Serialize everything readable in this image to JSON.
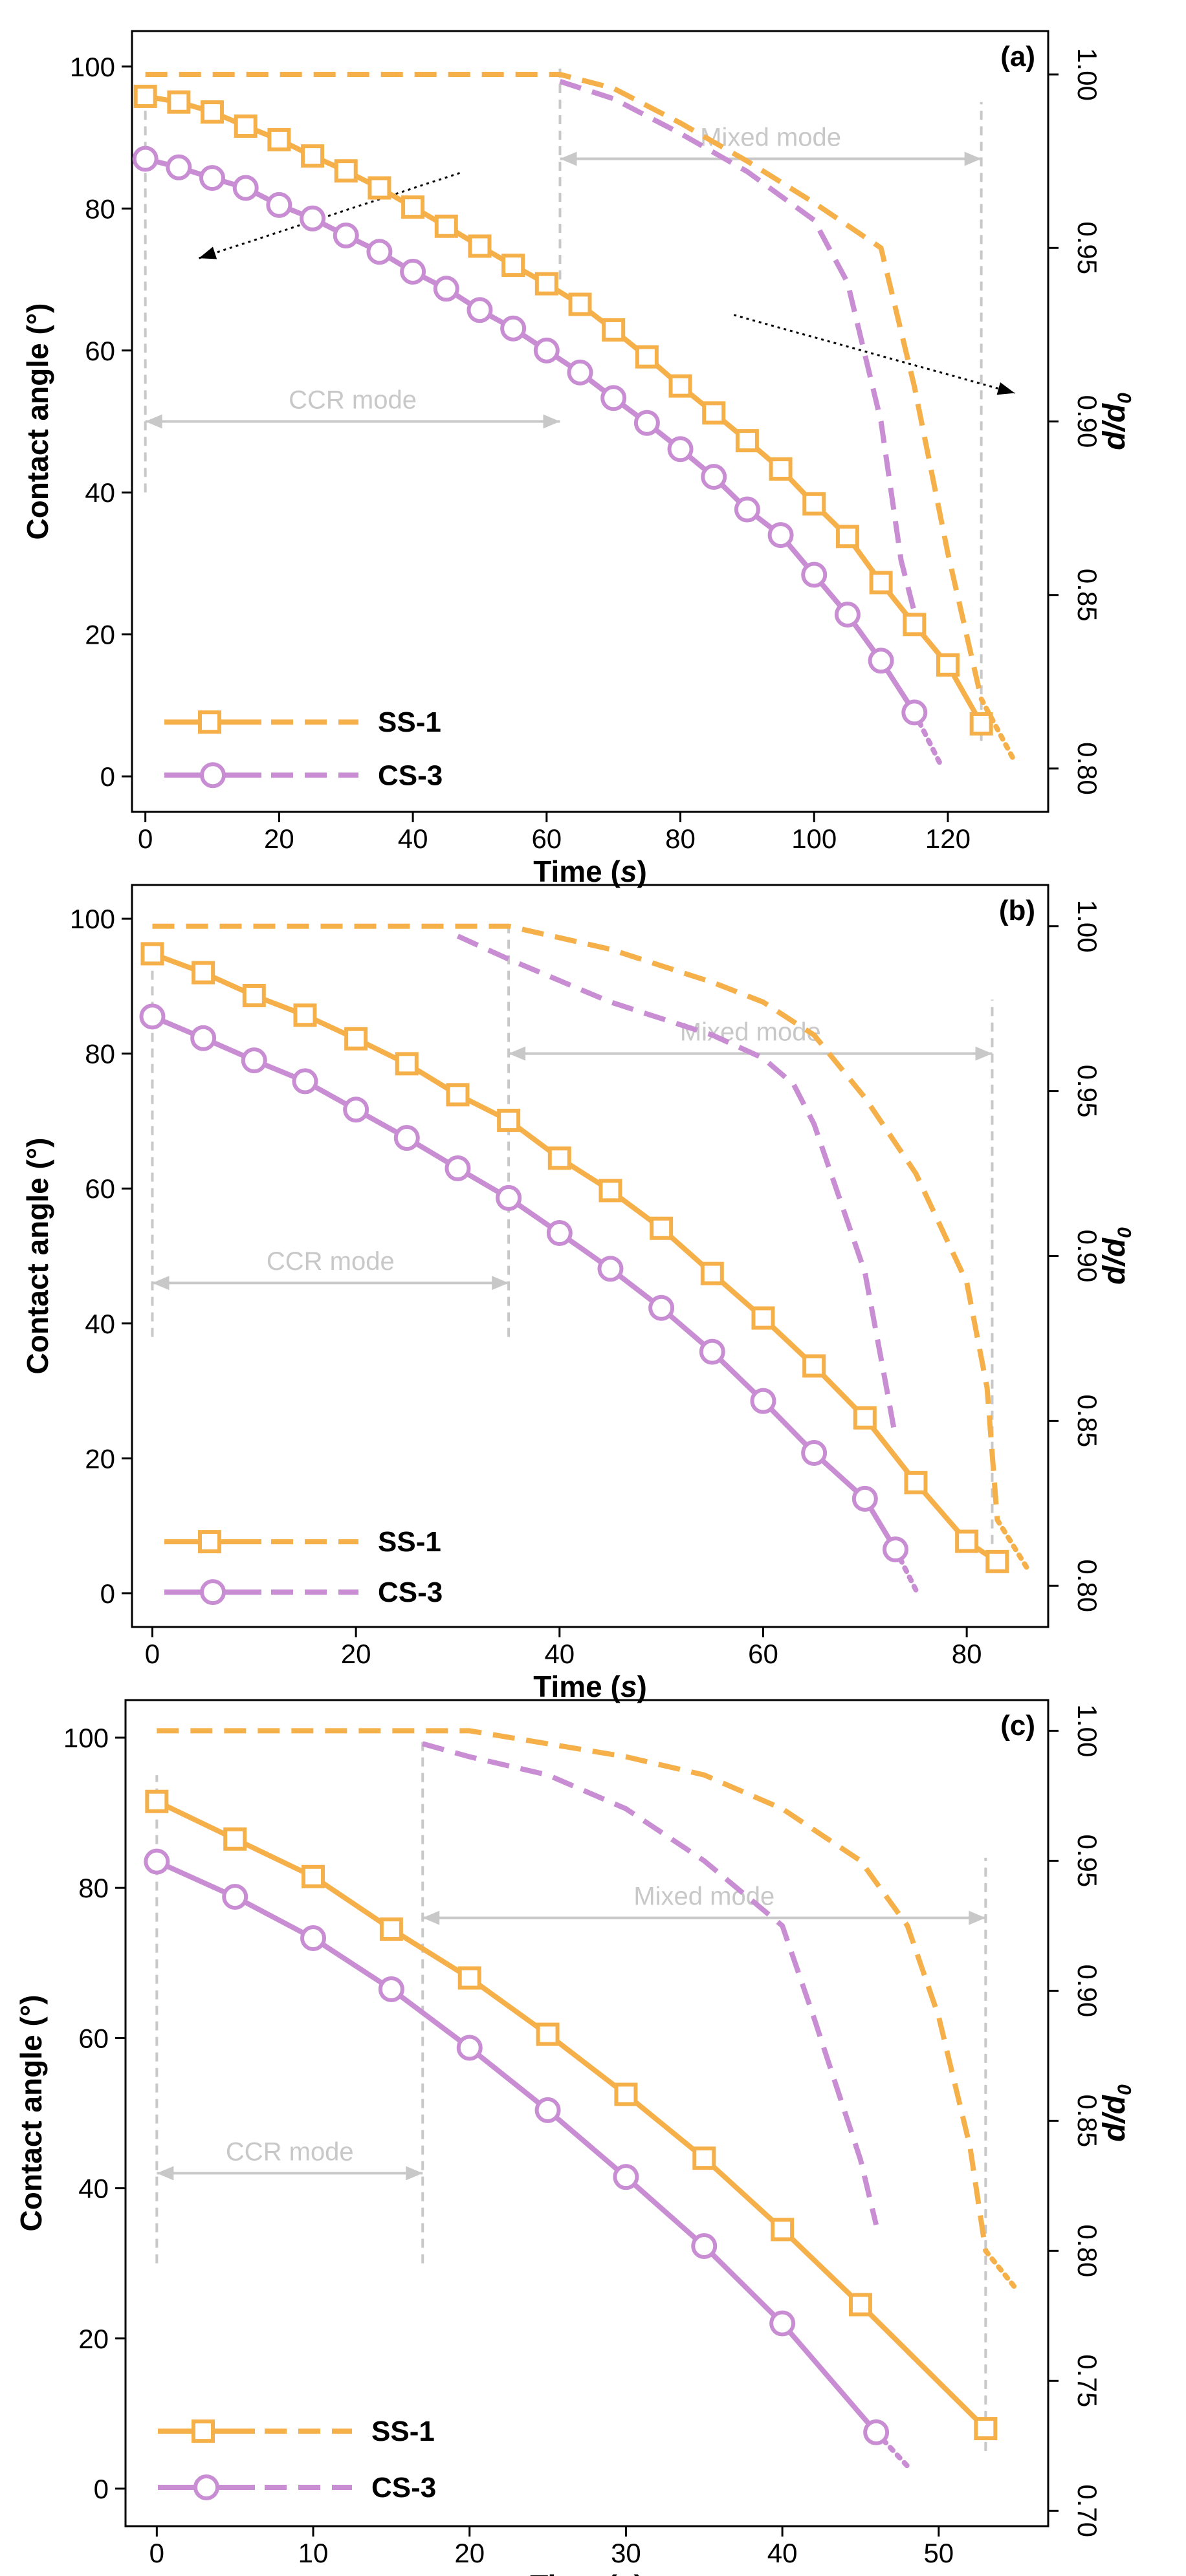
{
  "colors": {
    "ss1": "#f5b04a",
    "cs3": "#c88dd2",
    "guide": "#c8c8c8",
    "axis": "#000000"
  },
  "chart_data": [
    {
      "type": "line",
      "panel_label": "(a)",
      "xlabel": "Time",
      "xlabel_unit": "s",
      "ylabel": "Contact angle (°)",
      "y2label_main": "d/d",
      "y2label_sub": "0",
      "xlim": [
        -2,
        135
      ],
      "ylim": [
        -5,
        105
      ],
      "y2lim": [
        0.7875,
        1.0125
      ],
      "xticks": [
        0,
        20,
        40,
        60,
        80,
        100,
        120
      ],
      "yticks": [
        0,
        20,
        40,
        60,
        80,
        100
      ],
      "y2ticks": [
        0.8,
        0.85,
        0.9,
        0.95,
        1.0
      ],
      "y2tick_labels": [
        "0.80",
        "0.85",
        "0.90",
        "0.95",
        "1.00"
      ],
      "ccr_label": "CCR mode",
      "mixed_label": "Mixed mode",
      "mode_split_x": 62,
      "mode_end_x": 125,
      "ccr_arrow_y": 50,
      "mixed_arrow_y": 87,
      "guide_y_bottom": 40,
      "mixed_guide_y_bottom": 70,
      "mixed_guide_end_bottom": 5,
      "legend": [
        "SS-1",
        "CS-3"
      ],
      "series": [
        {
          "name": "SS-1",
          "kind": "contact_angle",
          "markers": true,
          "marker": "square",
          "x": [
            0,
            5,
            10,
            15,
            20,
            25,
            30,
            35,
            40,
            45,
            50,
            55,
            60,
            65,
            70,
            75,
            80,
            85,
            90,
            95,
            100,
            105,
            110,
            115,
            120,
            125
          ],
          "y": [
            95.8,
            95,
            93.6,
            91.6,
            89.7,
            87.4,
            85.3,
            82.9,
            80.2,
            77.5,
            74.7,
            72,
            69.4,
            66.5,
            62.9,
            59.1,
            55,
            51.2,
            47.3,
            43.3,
            38.4,
            33.8,
            27.3,
            21.4,
            15.7,
            7.4
          ]
        },
        {
          "name": "CS-3",
          "kind": "contact_angle",
          "markers": true,
          "marker": "circle",
          "x": [
            0,
            5,
            10,
            15,
            20,
            25,
            30,
            35,
            40,
            45,
            50,
            55,
            60,
            65,
            70,
            75,
            80,
            85,
            90,
            95,
            100,
            105,
            110,
            115
          ],
          "y": [
            87,
            85.8,
            84.3,
            82.9,
            80.5,
            78.6,
            76.2,
            73.9,
            71.1,
            68.7,
            65.7,
            63.1,
            60,
            56.9,
            53.3,
            49.8,
            46.1,
            42.2,
            37.6,
            34,
            28.4,
            22.8,
            16.3,
            9
          ],
          "tail_x": [
            115,
            119
          ],
          "tail_y": [
            9,
            1.5
          ]
        },
        {
          "name": "SS-1",
          "kind": "d_over_d0",
          "x": [
            0,
            62,
            70,
            80,
            90,
            100,
            110,
            115,
            120,
            125
          ],
          "y": [
            1.0,
            1.0,
            0.996,
            0.986,
            0.975,
            0.963,
            0.95,
            0.91,
            0.862,
            0.82
          ],
          "tail_x": [
            125,
            130
          ],
          "tail_y": [
            0.82,
            0.802
          ]
        },
        {
          "name": "CS-3",
          "kind": "d_over_d0",
          "x": [
            62,
            70,
            80,
            90,
            100,
            105,
            110,
            113,
            115
          ],
          "y": [
            0.998,
            0.993,
            0.983,
            0.972,
            0.958,
            0.94,
            0.9,
            0.86,
            0.845
          ]
        }
      ]
    },
    {
      "type": "line",
      "panel_label": "(b)",
      "xlabel": "Time",
      "xlabel_unit": "s",
      "ylabel": "Contact angle (°)",
      "y2label_main": "d/d",
      "y2label_sub": "0",
      "xlim": [
        -2,
        88
      ],
      "ylim": [
        -5,
        105
      ],
      "y2lim": [
        0.7875,
        1.0125
      ],
      "xticks": [
        0,
        20,
        40,
        60,
        80
      ],
      "yticks": [
        0,
        20,
        40,
        60,
        80,
        100
      ],
      "y2ticks": [
        0.8,
        0.85,
        0.9,
        0.95,
        1.0
      ],
      "y2tick_labels": [
        "0.80",
        "0.85",
        "0.90",
        "0.95",
        "1.00"
      ],
      "ccr_label": "CCR mode",
      "mixed_label": "Mixed mode",
      "mode_split_x": 35,
      "mode_end_x": 82.5,
      "ccr_arrow_y": 46,
      "mixed_arrow_y": 80,
      "guide_y_bottom": 38,
      "mixed_guide_y_bottom": 38,
      "mixed_guide_end_bottom": 5,
      "legend": [
        "SS-1",
        "CS-3"
      ],
      "series": [
        {
          "name": "SS-1",
          "kind": "contact_angle",
          "markers": true,
          "marker": "square",
          "x": [
            0,
            5,
            10,
            15,
            20,
            25,
            30,
            35,
            40,
            45,
            50,
            55,
            60,
            65,
            70,
            75,
            80,
            83
          ],
          "y": [
            94.8,
            92,
            88.6,
            85.7,
            82.2,
            78.5,
            73.9,
            70.1,
            64.5,
            59.7,
            54.1,
            47.4,
            40.8,
            33.7,
            26,
            16.4,
            7.7,
            4.7
          ]
        },
        {
          "name": "CS-3",
          "kind": "contact_angle",
          "markers": true,
          "marker": "circle",
          "x": [
            0,
            5,
            10,
            15,
            20,
            25,
            30,
            35,
            40,
            45,
            50,
            55,
            60,
            65,
            70,
            73
          ],
          "y": [
            85.5,
            82.3,
            79,
            75.9,
            71.7,
            67.5,
            63,
            58.6,
            53.4,
            48.1,
            42.3,
            35.8,
            28.5,
            20.8,
            14,
            6.5
          ],
          "tail_x": [
            73,
            75
          ],
          "tail_y": [
            6.5,
            0.5
          ]
        },
        {
          "name": "SS-1",
          "kind": "d_over_d0",
          "x": [
            0,
            35,
            45,
            55,
            60,
            65,
            70,
            75,
            80,
            82,
            83
          ],
          "y": [
            1.0,
            1.0,
            0.993,
            0.983,
            0.977,
            0.967,
            0.948,
            0.925,
            0.892,
            0.86,
            0.82
          ],
          "tail_x": [
            83,
            86
          ],
          "tail_y": [
            0.82,
            0.805
          ]
        },
        {
          "name": "CS-3",
          "kind": "d_over_d0",
          "x": [
            30,
            35,
            45,
            55,
            60,
            63,
            65,
            70,
            72,
            73
          ],
          "y": [
            0.997,
            0.99,
            0.977,
            0.967,
            0.96,
            0.952,
            0.94,
            0.895,
            0.862,
            0.845
          ]
        }
      ]
    },
    {
      "type": "line",
      "panel_label": "(c)",
      "xlabel": "Time",
      "xlabel_unit": "s",
      "ylabel": "Contact angle (°)",
      "y2label_main": "d/d",
      "y2label_sub": "0",
      "xlim": [
        -2,
        57
      ],
      "ylim": [
        -5,
        105
      ],
      "y2lim": [
        0.6941,
        1.0118
      ],
      "xticks": [
        0,
        10,
        20,
        30,
        40,
        50
      ],
      "yticks": [
        0,
        20,
        40,
        60,
        80,
        100
      ],
      "y2ticks": [
        0.7,
        0.75,
        0.8,
        0.85,
        0.9,
        0.95,
        1.0
      ],
      "y2tick_labels": [
        "0.70",
        "0.75",
        "0.80",
        "0.85",
        "0.90",
        "0.95",
        "1.00"
      ],
      "ccr_label": "CCR mode",
      "mixed_label": "Mixed mode",
      "mode_split_x": 17,
      "mode_end_x": 53,
      "ccr_arrow_y": 42,
      "mixed_arrow_y": 76,
      "guide_y_bottom": 30,
      "mixed_guide_y_bottom": 30,
      "mixed_guide_end_bottom": 5,
      "legend": [
        "SS-1",
        "CS-3"
      ],
      "series": [
        {
          "name": "SS-1",
          "kind": "contact_angle",
          "markers": true,
          "marker": "square",
          "x": [
            0,
            5,
            10,
            15,
            20,
            25,
            30,
            35,
            40,
            45,
            53
          ],
          "y": [
            91.5,
            86.5,
            81.5,
            74.5,
            68,
            60.5,
            52.5,
            44,
            34.5,
            24.5,
            8
          ]
        },
        {
          "name": "CS-3",
          "kind": "contact_angle",
          "markers": true,
          "marker": "circle",
          "x": [
            0,
            5,
            10,
            15,
            20,
            25,
            30,
            35,
            40,
            46
          ],
          "y": [
            83.5,
            78.8,
            73.3,
            66.5,
            58.7,
            50.4,
            41.5,
            32.3,
            22,
            7.5
          ],
          "tail_x": [
            46,
            48
          ],
          "tail_y": [
            7.5,
            3
          ]
        },
        {
          "name": "SS-1",
          "kind": "d_over_d0",
          "x": [
            0,
            17,
            20,
            25,
            30,
            35,
            40,
            45,
            48,
            50,
            52,
            53
          ],
          "y": [
            1.0,
            1.0,
            1.0,
            0.995,
            0.99,
            0.983,
            0.97,
            0.95,
            0.925,
            0.89,
            0.84,
            0.8
          ],
          "tail_x": [
            53,
            55
          ],
          "tail_y": [
            0.8,
            0.785
          ]
        },
        {
          "name": "CS-3",
          "kind": "d_over_d0",
          "x": [
            17,
            20,
            25,
            30,
            35,
            40,
            42,
            45,
            46
          ],
          "y": [
            0.995,
            0.99,
            0.983,
            0.97,
            0.95,
            0.925,
            0.89,
            0.835,
            0.81
          ]
        }
      ]
    }
  ]
}
